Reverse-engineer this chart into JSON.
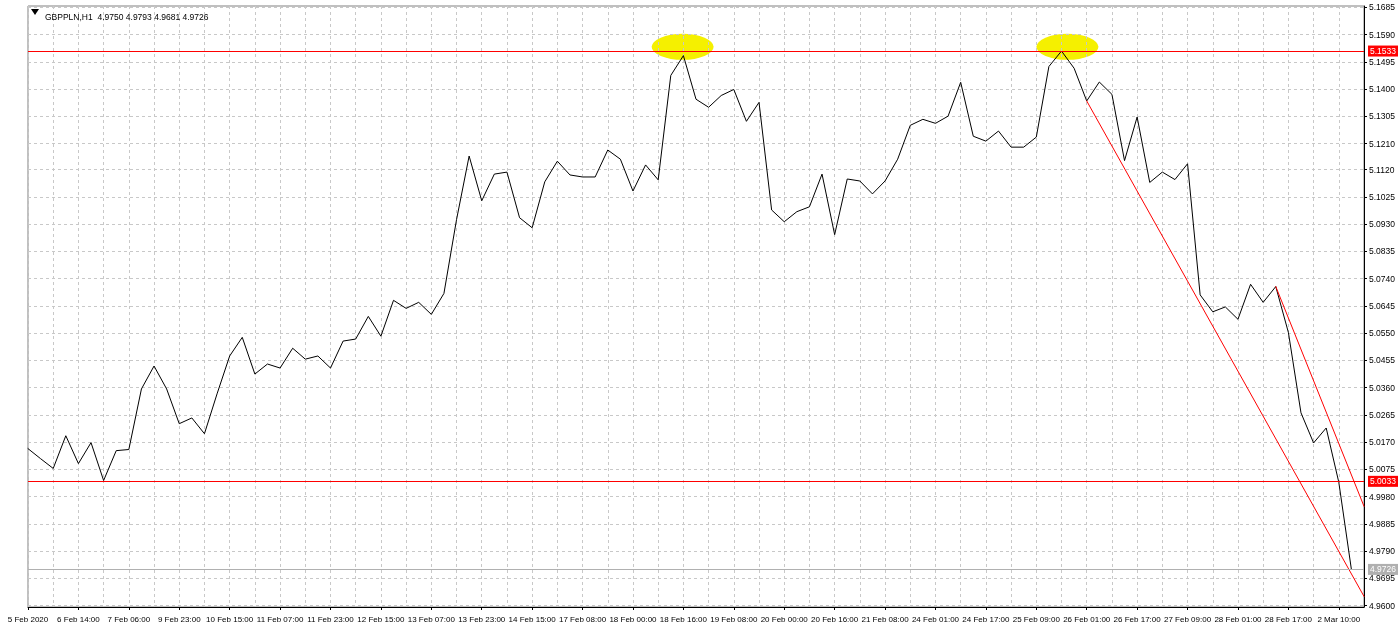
{
  "chart_data": {
    "type": "line",
    "title": "GBPPLN,H1  4.9750 4.9793 4.9681 4.9726",
    "grid": true,
    "marker": "none",
    "line_style": "solid",
    "categories": [
      "5 Feb 2020",
      null,
      null,
      null,
      "6 Feb 14:00",
      null,
      null,
      null,
      "7 Feb 06:00",
      null,
      null,
      null,
      "9 Feb 23:00",
      null,
      null,
      null,
      "10 Feb 15:00",
      null,
      null,
      null,
      "11 Feb 07:00",
      null,
      null,
      null,
      "11 Feb 23:00",
      null,
      null,
      null,
      "12 Feb 15:00",
      null,
      null,
      null,
      "13 Feb 07:00",
      null,
      null,
      null,
      "13 Feb 23:00",
      null,
      null,
      null,
      "14 Feb 15:00",
      null,
      null,
      null,
      "17 Feb 08:00",
      null,
      null,
      null,
      "18 Feb 00:00",
      null,
      null,
      null,
      "18 Feb 16:00",
      null,
      null,
      null,
      "19 Feb 08:00",
      null,
      null,
      null,
      "20 Feb 00:00",
      null,
      null,
      null,
      "20 Feb 16:00",
      null,
      null,
      null,
      "21 Feb 08:00",
      null,
      null,
      null,
      "24 Feb 01:00",
      null,
      null,
      null,
      "24 Feb 17:00",
      null,
      null,
      null,
      "25 Feb 09:00",
      null,
      null,
      null,
      "26 Feb 01:00",
      null,
      null,
      null,
      "26 Feb 17:00",
      null,
      null,
      null,
      "27 Feb 09:00",
      null,
      null,
      null,
      "28 Feb 01:00",
      null,
      null,
      null,
      "28 Feb 17:00",
      null,
      null,
      null,
      "2 Mar 10:00",
      null,
      null
    ],
    "ylim": [
      4.9595,
      5.169
    ],
    "yticks": [
      {
        "value": 4.96,
        "label": "4.9600"
      },
      4.9695,
      {
        "value": 4.979,
        "label": "4.9790"
      },
      4.9885,
      {
        "value": 4.998,
        "label": "4.9980"
      },
      5.0075,
      {
        "value": 5.017,
        "label": "5.0170"
      },
      5.0265,
      {
        "value": 5.036,
        "label": "5.0360"
      },
      5.0455,
      {
        "value": 5.055,
        "label": "5.0550"
      },
      5.0645,
      {
        "value": 5.074,
        "label": "5.0740"
      },
      5.0835,
      {
        "value": 5.093,
        "label": "5.0930"
      },
      5.1025,
      {
        "value": 5.112,
        "label": "5.1120"
      },
      {
        "value": 5.121,
        "label": "5.1210"
      },
      5.1305,
      {
        "value": 5.14,
        "label": "5.1400"
      },
      5.1495,
      {
        "value": 5.159,
        "label": "5.1590"
      },
      5.1685
    ],
    "series": [
      {
        "color": "#000000",
        "values": [
          5.0147,
          5.0112,
          5.0078,
          5.0192,
          5.0095,
          5.0168,
          5.0036,
          5.014,
          5.0144,
          5.0355,
          5.0435,
          5.0355,
          5.0234,
          5.0254,
          5.0199,
          5.0338,
          5.047,
          5.0535,
          5.0407,
          5.0442,
          5.0428,
          5.0497,
          5.0459,
          5.047,
          5.0428,
          5.0522,
          5.0529,
          5.0608,
          5.0539,
          5.0664,
          5.0636,
          5.0657,
          5.0615,
          5.0688,
          5.0945,
          5.1167,
          5.1011,
          5.1104,
          5.1111,
          5.0952,
          5.0917,
          5.1077,
          5.1149,
          5.1101,
          5.1094,
          5.1094,
          5.1188,
          5.1156,
          5.1045,
          5.1136,
          5.1084,
          5.1448,
          5.1517,
          5.1365,
          5.1337,
          5.1378,
          5.1399,
          5.1288,
          5.1354,
          5.0979,
          5.0938,
          5.0973,
          5.099,
          5.1104,
          5.0893,
          5.1087,
          5.108,
          5.1035,
          5.108,
          5.1156,
          5.1274,
          5.1295,
          5.1281,
          5.1306,
          5.1424,
          5.1236,
          5.1219,
          5.1254,
          5.1198,
          5.1198,
          5.1233,
          5.1479,
          5.1533,
          5.1473,
          5.1359,
          5.1425,
          5.1382,
          5.1151,
          5.1303,
          5.1075,
          5.1111,
          5.1085,
          5.114,
          5.0683,
          5.0624,
          5.0641,
          5.0598,
          5.072,
          5.0657,
          5.0712,
          5.0552,
          5.0272,
          5.0167,
          5.0219,
          5.003,
          4.9726,
          null
        ]
      },
      {
        "color": "#ff0000",
        "values": [
          null,
          null,
          null,
          null,
          null,
          null,
          null,
          null,
          null,
          null,
          null,
          null,
          null,
          null,
          null,
          null,
          null,
          null,
          null,
          null,
          null,
          null,
          null,
          null,
          null,
          null,
          null,
          null,
          null,
          null,
          null,
          null,
          null,
          null,
          null,
          null,
          null,
          null,
          null,
          null,
          null,
          null,
          null,
          null,
          null,
          null,
          null,
          null,
          null,
          null,
          null,
          null,
          null,
          null,
          null,
          null,
          null,
          null,
          null,
          null,
          null,
          null,
          null,
          null,
          null,
          null,
          null,
          null,
          null,
          null,
          null,
          null,
          null,
          null,
          null,
          null,
          null,
          null,
          null,
          null,
          null,
          null,
          null,
          null,
          5.1359,
          null,
          null,
          null,
          null,
          null,
          null,
          null,
          null,
          null,
          null,
          null,
          null,
          null,
          null,
          null,
          null,
          null,
          null,
          null,
          null,
          null,
          4.9632
        ]
      },
      {
        "color": "#ff0000",
        "values": [
          null,
          null,
          null,
          null,
          null,
          null,
          null,
          null,
          null,
          null,
          null,
          null,
          null,
          null,
          null,
          null,
          null,
          null,
          null,
          null,
          null,
          null,
          null,
          null,
          null,
          null,
          null,
          null,
          null,
          null,
          null,
          null,
          null,
          null,
          null,
          null,
          null,
          null,
          null,
          null,
          null,
          null,
          null,
          null,
          null,
          null,
          null,
          null,
          null,
          null,
          null,
          null,
          null,
          null,
          null,
          null,
          null,
          null,
          null,
          null,
          null,
          null,
          null,
          null,
          null,
          null,
          null,
          null,
          null,
          null,
          null,
          null,
          null,
          null,
          null,
          null,
          null,
          null,
          null,
          null,
          null,
          null,
          null,
          null,
          null,
          null,
          null,
          null,
          null,
          null,
          null,
          null,
          null,
          null,
          null,
          null,
          null,
          null,
          null,
          5.0712,
          null,
          null,
          null,
          null,
          null,
          null,
          4.9946
        ]
      }
    ],
    "ref_lines": [
      {
        "axis": "y",
        "value": 5.1533,
        "label": "5.1533",
        "color": "#ff0000",
        "line_style": "solid"
      },
      {
        "axis": "y",
        "value": 5.0033,
        "label": "5.0033",
        "color": "#ff0000",
        "line_style": "solid"
      },
      {
        "axis": "y",
        "value": 4.9726,
        "label": "4.9726",
        "color": "#b0b0b0",
        "line_style": "solid"
      }
    ]
  }
}
